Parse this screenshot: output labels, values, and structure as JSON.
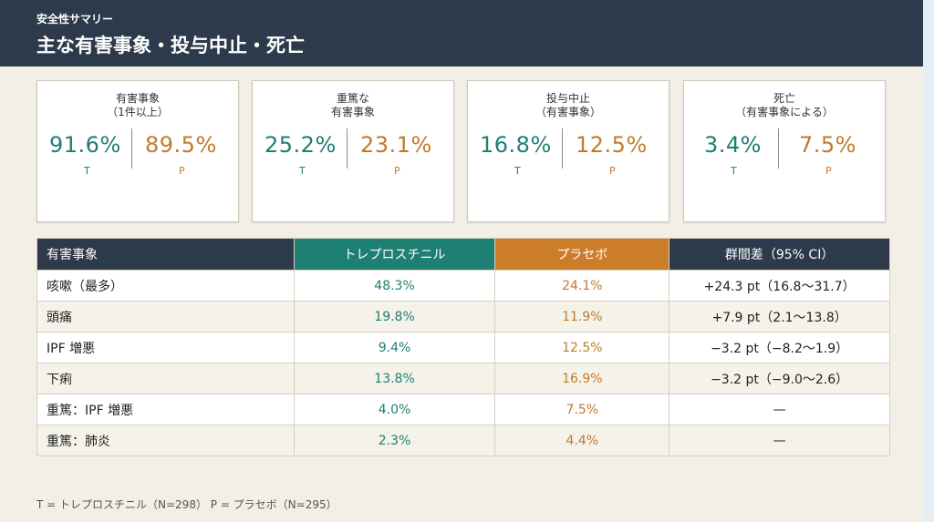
{
  "header": {
    "kicker": "安全性サマリー",
    "title": "主な有害事象・投与中止・死亡"
  },
  "cards": [
    {
      "label_lines": [
        "有害事象",
        "（1件以上）"
      ],
      "t_value": "91.6%",
      "p_value": "89.5%",
      "t_label": "T",
      "p_label": "P"
    },
    {
      "label_lines": [
        "重篤な",
        "有害事象"
      ],
      "t_value": "25.2%",
      "p_value": "23.1%",
      "t_label": "T",
      "p_label": "P"
    },
    {
      "label_lines": [
        "投与中止",
        "（有害事象）"
      ],
      "t_value": "16.8%",
      "p_value": "12.5%",
      "t_label": "T",
      "p_label": "P"
    },
    {
      "label_lines": [
        "死亡",
        "（有害事象による）"
      ],
      "t_value": "3.4%",
      "p_value": "7.5%",
      "t_label": "T",
      "p_label": "P"
    }
  ],
  "table": {
    "headers": [
      "有害事象",
      "トレプロスチニル",
      "プラセボ",
      "群間差（95% CI）"
    ],
    "rows": [
      [
        "咳嗽（最多）",
        "48.3%",
        "24.1%",
        "+24.3 pt（16.8〜31.7）"
      ],
      [
        "頭痛",
        "19.8%",
        "11.9%",
        "+7.9 pt（2.1〜13.8）"
      ],
      [
        "IPF 増悪",
        "9.4%",
        "12.5%",
        "−3.2 pt（−8.2〜1.9）"
      ],
      [
        "下痢",
        "13.8%",
        "16.9%",
        "−3.2 pt（−9.0〜2.6）"
      ],
      [
        "重篤：IPF 増悪",
        "4.0%",
        "7.5%",
        "—"
      ],
      [
        "重篤：肺炎",
        "2.3%",
        "4.4%",
        "—"
      ]
    ]
  },
  "footnote": "T = トレプロスチニル（N=298） P = プラセボ（N=295）",
  "colors": {
    "header_bg": "#2c3a4b",
    "treatment": "#1e7f73",
    "placebo": "#c27a2c",
    "page_bg": "#f3efe6"
  }
}
